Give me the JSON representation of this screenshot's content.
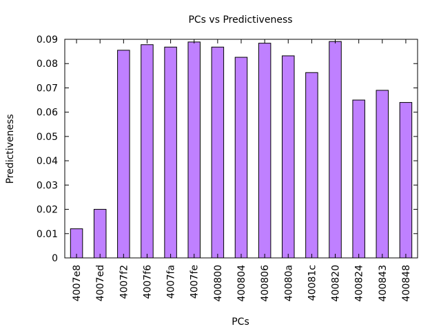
{
  "chart_data": {
    "type": "bar",
    "title": "PCs vs Predictiveness",
    "xlabel": "PCs",
    "ylabel": "Predictiveness",
    "categories": [
      "4007e8",
      "4007ed",
      "4007f2",
      "4007f6",
      "4007fa",
      "4007fe",
      "400800",
      "400804",
      "400806",
      "40080a",
      "40081c",
      "400820",
      "400824",
      "400843",
      "400848"
    ],
    "values": [
      0.012,
      0.02,
      0.0855,
      0.0878,
      0.0868,
      0.0889,
      0.0868,
      0.0826,
      0.0884,
      0.0832,
      0.0763,
      0.0891,
      0.065,
      0.069,
      0.064
    ],
    "yticks": [
      "0",
      "0.01",
      "0.02",
      "0.03",
      "0.04",
      "0.05",
      "0.06",
      "0.07",
      "0.08",
      "0.09"
    ],
    "ylim": [
      0,
      0.09
    ],
    "grid": false,
    "bar_color": "#bf80ff",
    "bar_stroke": "#000000"
  }
}
